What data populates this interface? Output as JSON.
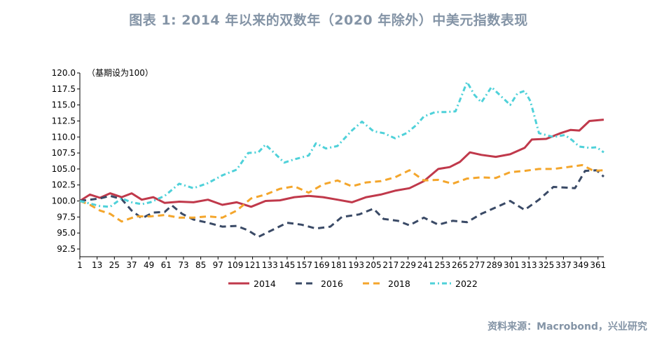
{
  "title": "图表 1:   2014 年以来的双数年（2020 年除外）中美元指数表现",
  "source": "资料来源：Macrobond，兴业研究",
  "chart_data": {
    "type": "line",
    "note": "（基期设为100）",
    "ylim": [
      92.5,
      120.0
    ],
    "yticks": [
      "120.0",
      "117.5",
      "115.0",
      "112.5",
      "110.0",
      "107.5",
      "105.0",
      "102.5",
      "100.0",
      "97.5",
      "95.0",
      "92.5"
    ],
    "xlim": [
      1,
      365
    ],
    "xticks": [
      "1",
      "13",
      "25",
      "37",
      "49",
      "61",
      "73",
      "85",
      "97",
      "109",
      "121",
      "133",
      "145",
      "157",
      "169",
      "181",
      "193",
      "205",
      "217",
      "229",
      "241",
      "253",
      "265",
      "277",
      "289",
      "301",
      "313",
      "325",
      "337",
      "349",
      "361"
    ],
    "legend_position": "bottom",
    "series": [
      {
        "name": "2014",
        "color": "#c0394b",
        "dash": "solid",
        "points": [
          [
            1,
            100.0
          ],
          [
            8,
            101.0
          ],
          [
            15,
            100.5
          ],
          [
            22,
            101.2
          ],
          [
            30,
            100.6
          ],
          [
            37,
            101.2
          ],
          [
            44,
            100.2
          ],
          [
            52,
            100.6
          ],
          [
            60,
            99.7
          ],
          [
            70,
            99.9
          ],
          [
            80,
            99.8
          ],
          [
            90,
            100.2
          ],
          [
            100,
            99.4
          ],
          [
            110,
            99.8
          ],
          [
            120,
            99.1
          ],
          [
            130,
            100.0
          ],
          [
            140,
            100.1
          ],
          [
            150,
            100.6
          ],
          [
            160,
            100.8
          ],
          [
            170,
            100.6
          ],
          [
            180,
            100.2
          ],
          [
            190,
            99.8
          ],
          [
            200,
            100.6
          ],
          [
            210,
            101.0
          ],
          [
            220,
            101.6
          ],
          [
            230,
            102.0
          ],
          [
            240,
            103.1
          ],
          [
            250,
            105.0
          ],
          [
            258,
            105.3
          ],
          [
            265,
            106.1
          ],
          [
            272,
            107.6
          ],
          [
            280,
            107.2
          ],
          [
            290,
            106.9
          ],
          [
            300,
            107.3
          ],
          [
            310,
            108.3
          ],
          [
            315,
            109.6
          ],
          [
            325,
            109.7
          ],
          [
            335,
            110.6
          ],
          [
            342,
            111.1
          ],
          [
            348,
            111.0
          ],
          [
            355,
            112.5
          ],
          [
            365,
            112.7
          ]
        ]
      },
      {
        "name": "2016",
        "color": "#3a4a66",
        "dash": "long",
        "points": [
          [
            1,
            100.0
          ],
          [
            8,
            100.2
          ],
          [
            15,
            100.4
          ],
          [
            22,
            100.8
          ],
          [
            30,
            100.3
          ],
          [
            37,
            98.5
          ],
          [
            44,
            97.3
          ],
          [
            52,
            98.2
          ],
          [
            60,
            98.3
          ],
          [
            65,
            99.3
          ],
          [
            72,
            98.0
          ],
          [
            80,
            97.1
          ],
          [
            90,
            96.6
          ],
          [
            100,
            96.0
          ],
          [
            110,
            96.1
          ],
          [
            118,
            95.4
          ],
          [
            125,
            94.4
          ],
          [
            135,
            95.5
          ],
          [
            145,
            96.6
          ],
          [
            155,
            96.3
          ],
          [
            165,
            95.7
          ],
          [
            175,
            96.0
          ],
          [
            183,
            97.5
          ],
          [
            195,
            97.9
          ],
          [
            205,
            98.8
          ],
          [
            212,
            97.2
          ],
          [
            222,
            96.9
          ],
          [
            230,
            96.2
          ],
          [
            240,
            97.4
          ],
          [
            250,
            96.3
          ],
          [
            260,
            96.9
          ],
          [
            270,
            96.7
          ],
          [
            280,
            98.0
          ],
          [
            290,
            99.0
          ],
          [
            300,
            100.0
          ],
          [
            310,
            98.6
          ],
          [
            320,
            100.2
          ],
          [
            330,
            102.2
          ],
          [
            338,
            102.1
          ],
          [
            345,
            102.0
          ],
          [
            352,
            104.7
          ],
          [
            360,
            104.8
          ],
          [
            365,
            103.8
          ]
        ]
      },
      {
        "name": "2018",
        "color": "#f4a62c",
        "dash": "long",
        "points": [
          [
            1,
            100.0
          ],
          [
            8,
            99.4
          ],
          [
            15,
            98.5
          ],
          [
            22,
            98.0
          ],
          [
            30,
            96.8
          ],
          [
            40,
            97.6
          ],
          [
            50,
            97.6
          ],
          [
            60,
            97.8
          ],
          [
            70,
            97.4
          ],
          [
            80,
            97.4
          ],
          [
            90,
            97.6
          ],
          [
            100,
            97.4
          ],
          [
            110,
            98.5
          ],
          [
            120,
            100.4
          ],
          [
            130,
            101.0
          ],
          [
            140,
            101.9
          ],
          [
            150,
            102.3
          ],
          [
            160,
            101.3
          ],
          [
            170,
            102.6
          ],
          [
            180,
            103.2
          ],
          [
            190,
            102.3
          ],
          [
            200,
            102.9
          ],
          [
            210,
            103.1
          ],
          [
            220,
            103.7
          ],
          [
            230,
            104.8
          ],
          [
            240,
            103.2
          ],
          [
            250,
            103.3
          ],
          [
            260,
            102.7
          ],
          [
            270,
            103.5
          ],
          [
            280,
            103.7
          ],
          [
            290,
            103.6
          ],
          [
            300,
            104.5
          ],
          [
            310,
            104.7
          ],
          [
            320,
            105.0
          ],
          [
            330,
            105.0
          ],
          [
            340,
            105.3
          ],
          [
            350,
            105.6
          ],
          [
            358,
            104.7
          ],
          [
            365,
            104.8
          ]
        ]
      },
      {
        "name": "2022",
        "color": "#4fd1d9",
        "dash": "dashdot",
        "points": [
          [
            1,
            100.0
          ],
          [
            8,
            99.6
          ],
          [
            15,
            99.2
          ],
          [
            22,
            99.1
          ],
          [
            30,
            100.4
          ],
          [
            37,
            99.8
          ],
          [
            44,
            99.5
          ],
          [
            50,
            99.8
          ],
          [
            60,
            100.8
          ],
          [
            70,
            102.7
          ],
          [
            80,
            102.0
          ],
          [
            90,
            102.8
          ],
          [
            100,
            104.0
          ],
          [
            110,
            104.9
          ],
          [
            118,
            107.5
          ],
          [
            125,
            107.6
          ],
          [
            130,
            108.8
          ],
          [
            137,
            107.3
          ],
          [
            143,
            106.0
          ],
          [
            150,
            106.5
          ],
          [
            160,
            107.1
          ],
          [
            165,
            109.0
          ],
          [
            172,
            108.2
          ],
          [
            180,
            108.6
          ],
          [
            190,
            111.0
          ],
          [
            197,
            112.4
          ],
          [
            205,
            110.9
          ],
          [
            212,
            110.6
          ],
          [
            220,
            109.8
          ],
          [
            228,
            110.6
          ],
          [
            235,
            111.9
          ],
          [
            240,
            113.2
          ],
          [
            248,
            113.9
          ],
          [
            255,
            113.9
          ],
          [
            262,
            114.0
          ],
          [
            270,
            118.6
          ],
          [
            275,
            116.6
          ],
          [
            280,
            115.4
          ],
          [
            287,
            117.8
          ],
          [
            293,
            116.5
          ],
          [
            300,
            115.0
          ],
          [
            305,
            116.8
          ],
          [
            310,
            117.2
          ],
          [
            314,
            115.6
          ],
          [
            320,
            110.6
          ],
          [
            330,
            110.0
          ],
          [
            338,
            110.3
          ],
          [
            343,
            109.5
          ],
          [
            348,
            108.5
          ],
          [
            355,
            108.3
          ],
          [
            360,
            108.4
          ],
          [
            365,
            107.6
          ]
        ]
      }
    ]
  }
}
